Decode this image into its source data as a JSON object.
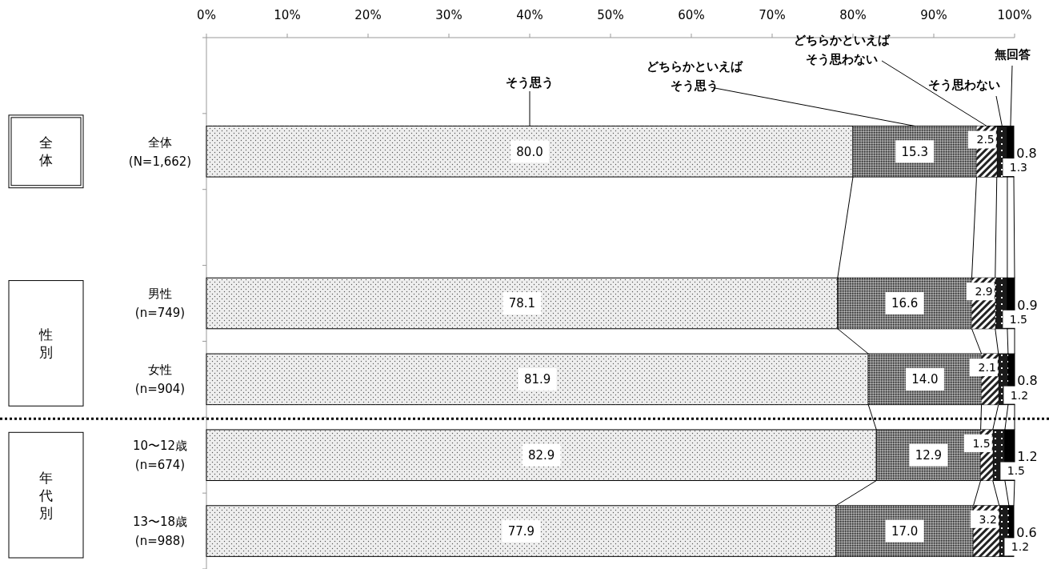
{
  "chart_data": {
    "type": "bar",
    "orientation": "horizontal",
    "stacked": true,
    "categories": [
      null,
      "全体 (N=1,662)",
      null,
      "男性 (n=749)",
      "女性 (n=904)",
      "10〜12歳 (n=674)",
      "13〜18歳 (n=988)"
    ],
    "xlim": [
      0,
      100
    ],
    "xticks": [
      {
        "value": 0,
        "label": "0%"
      },
      {
        "value": 10,
        "label": "10%"
      },
      {
        "value": 20,
        "label": "20%"
      },
      {
        "value": 30,
        "label": "30%"
      },
      {
        "value": 40,
        "label": "40%"
      },
      {
        "value": 50,
        "label": "50%"
      },
      {
        "value": 60,
        "label": "60%"
      },
      {
        "value": 70,
        "label": "70%"
      },
      {
        "value": 80,
        "label": "80%"
      },
      {
        "value": 90,
        "label": "90%"
      },
      {
        "value": 100,
        "label": "100%"
      }
    ],
    "series": [
      {
        "name": "そう思う",
        "color": "#eeeeee",
        "values": [
          null,
          80.0,
          null,
          78.1,
          81.9,
          82.9,
          77.9
        ],
        "value_labels": [
          null,
          "80.0",
          null,
          "78.1",
          "81.9",
          "82.9",
          "77.9"
        ]
      },
      {
        "name": "どちらかといえばそう思う",
        "color": "#808080",
        "values": [
          null,
          15.3,
          null,
          16.6,
          14.0,
          12.9,
          17.0
        ],
        "value_labels": [
          null,
          "15.3",
          null,
          "16.6",
          "14.0",
          "12.9",
          "17.0"
        ]
      },
      {
        "name": "どちらかといえばそう思わない",
        "color": "#999999",
        "values": [
          null,
          2.5,
          null,
          2.9,
          2.1,
          1.5,
          3.2
        ],
        "value_labels": [
          null,
          "2.5",
          null,
          "2.9",
          "2.1",
          "1.5",
          "3.2"
        ]
      },
      {
        "name": "そう思わない",
        "color": "#1a1a1a",
        "values": [
          null,
          1.3,
          null,
          1.5,
          1.2,
          1.5,
          1.2
        ],
        "value_labels": [
          null,
          "1.3",
          null,
          "1.5",
          "1.2",
          "1.5",
          "1.2"
        ]
      },
      {
        "name": "無回答",
        "color": "#000000",
        "values": [
          null,
          0.8,
          null,
          0.9,
          0.8,
          1.2,
          0.6
        ],
        "value_labels": [
          null,
          "0.8",
          null,
          "0.9",
          "0.8",
          "1.2",
          "0.6"
        ]
      }
    ],
    "annotations": [
      "全体",
      "性別",
      "年代別"
    ]
  }
}
